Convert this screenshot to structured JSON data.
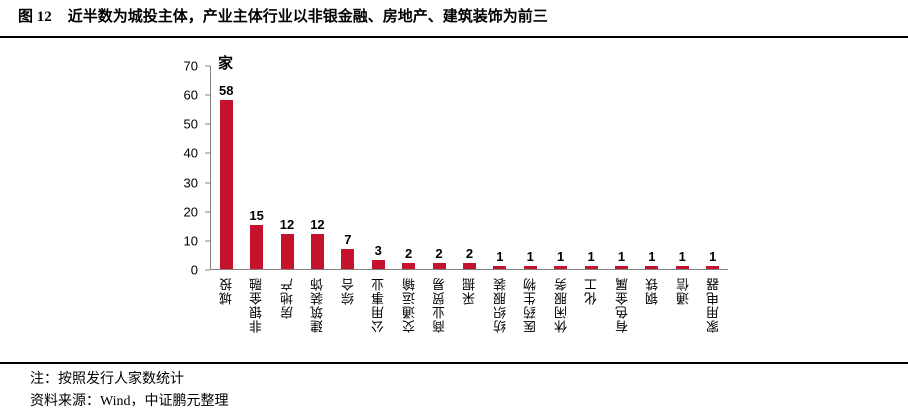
{
  "title": {
    "figure_label": "图 12",
    "text": "近半数为城投主体，产业主体行业以非银金融、房地产、建筑装饰为前三"
  },
  "chart_data": {
    "type": "bar",
    "title": "近半数为城投主体，产业主体行业以非银金融、房地产、建筑装饰为前三",
    "unit_label": "家",
    "categories": [
      "城投",
      "非银金融",
      "房地产",
      "建筑装饰",
      "综合",
      "公用事业",
      "交通运输",
      "商业贸易",
      "采掘",
      "纺织服装",
      "医药生物",
      "休闲服务",
      "化工",
      "有色金属",
      "钢铁",
      "通信",
      "家用电器"
    ],
    "values": [
      58,
      15,
      12,
      12,
      7,
      3,
      2,
      2,
      2,
      1,
      1,
      1,
      1,
      1,
      1,
      1,
      1
    ],
    "xlabel": "",
    "ylabel": "",
    "ylim": [
      0,
      70
    ],
    "yticks": [
      0,
      10,
      20,
      30,
      40,
      50,
      60,
      70
    ],
    "grid": false,
    "legend_position": "none",
    "data_labels": true,
    "bar_color": "#C5122D",
    "axis_color": "#808080"
  },
  "notes": {
    "note": "注：按照发行人家数统计",
    "source": "资料来源：Wind，中证鹏元整理"
  }
}
